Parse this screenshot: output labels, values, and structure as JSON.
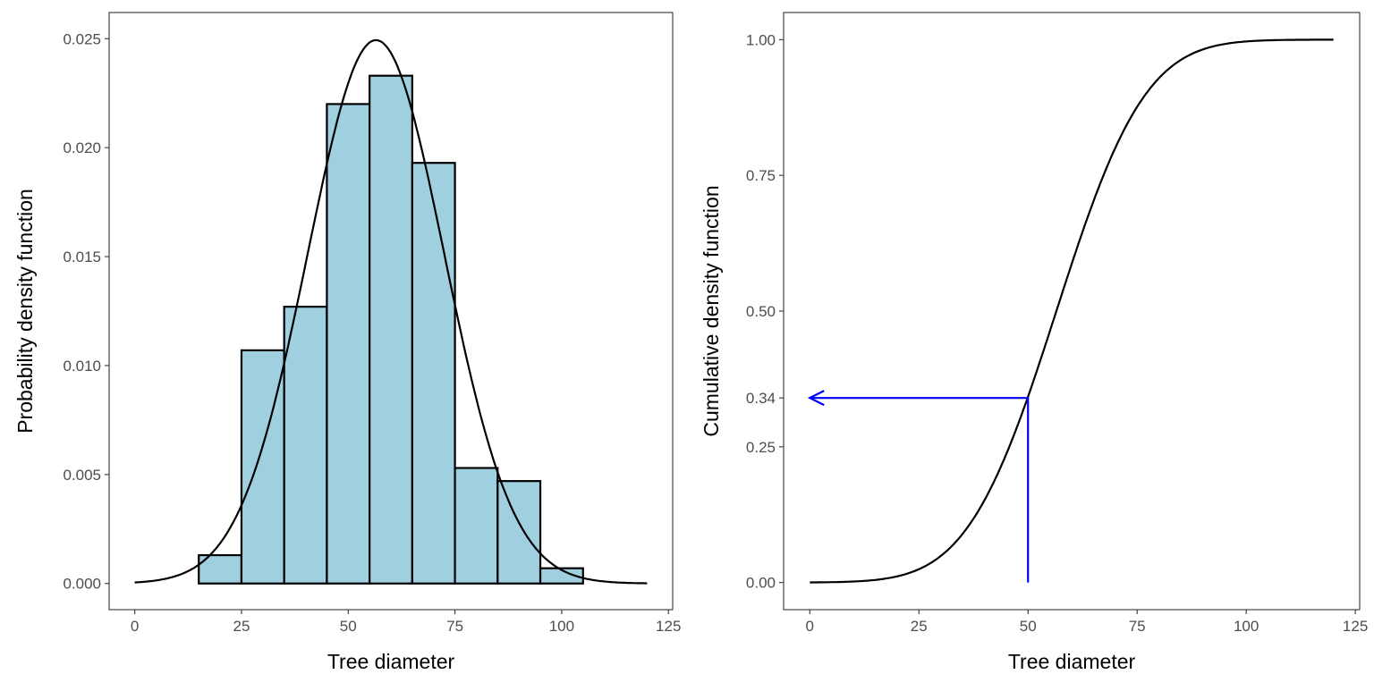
{
  "chart_data": [
    {
      "type": "bar",
      "subtype": "histogram with normal density curve",
      "xlabel": "Tree diameter",
      "ylabel": "Probability density function",
      "xlim": [
        -6,
        126
      ],
      "ylim": [
        -0.0012,
        0.0262
      ],
      "xticks": [
        0,
        25,
        50,
        75,
        100,
        125
      ],
      "xtick_labels": [
        "0",
        "25",
        "50",
        "75",
        "100",
        "125"
      ],
      "yticks": [
        0,
        0.005,
        0.01,
        0.015,
        0.02,
        0.025
      ],
      "ytick_labels": [
        "0.000",
        "0.005",
        "0.010",
        "0.015",
        "0.020",
        "0.025"
      ],
      "bins": [
        [
          5,
          15
        ],
        [
          15,
          25
        ],
        [
          25,
          35
        ],
        [
          35,
          45
        ],
        [
          45,
          55
        ],
        [
          55,
          65
        ],
        [
          65,
          75
        ],
        [
          75,
          85
        ],
        [
          85,
          95
        ],
        [
          95,
          105
        ],
        [
          105,
          115
        ]
      ],
      "values": [
        0,
        0.0013,
        0.0107,
        0.0127,
        0.022,
        0.0233,
        0.0193,
        0.0053,
        0.0047,
        0.0007,
        0
      ],
      "bar_fill": "#A0CFE0",
      "curve": {
        "distribution": "normal",
        "mean": 56.5,
        "sd": 16,
        "x_range": [
          0,
          120
        ],
        "color": "#000000"
      },
      "grid": false
    },
    {
      "type": "line",
      "xlabel": "Tree diameter",
      "ylabel": "Cumulative density function",
      "xlim": [
        -6,
        126
      ],
      "ylim": [
        -0.05,
        1.05
      ],
      "xticks": [
        0,
        25,
        50,
        75,
        100,
        125
      ],
      "xtick_labels": [
        "0",
        "25",
        "50",
        "75",
        "100",
        "125"
      ],
      "yticks": [
        0,
        0.25,
        0.34,
        0.5,
        0.75,
        1.0
      ],
      "ytick_labels": [
        "0.00",
        "0.25",
        "0.34",
        "0.50",
        "0.75",
        "1.00"
      ],
      "curve": {
        "distribution": "normal cdf",
        "mean": 56.5,
        "sd": 16,
        "x_range": [
          0,
          120
        ],
        "color": "#000000"
      },
      "annotation": {
        "x": 50,
        "y": 0.34,
        "color": "#0000FF",
        "arrow_to_x": 0
      },
      "grid": false
    }
  ]
}
